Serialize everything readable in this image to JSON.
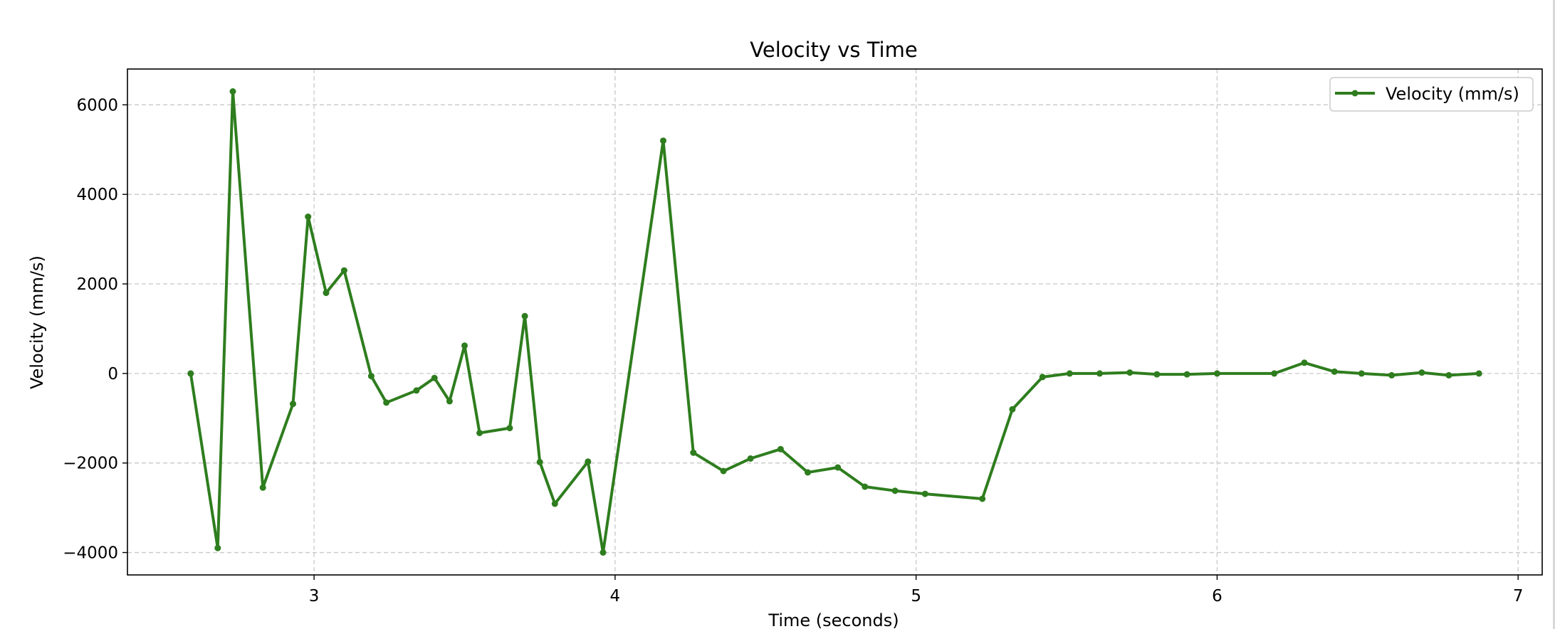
{
  "chart_data": {
    "type": "line",
    "title": "Velocity vs Time",
    "xlabel": "Time (seconds)",
    "ylabel": "Velocity (mm/s)",
    "xlim": [
      2.38,
      7.08
    ],
    "ylim": [
      -4500,
      6800
    ],
    "xticks": [
      3,
      4,
      5,
      6,
      7
    ],
    "xtick_labels": [
      "3",
      "4",
      "5",
      "6",
      "7"
    ],
    "yticks": [
      -4000,
      -2000,
      0,
      2000,
      4000,
      6000
    ],
    "ytick_labels": [
      "−4000",
      "−2000",
      "0",
      "2000",
      "4000",
      "6000"
    ],
    "grid": true,
    "grid_style": "dashed",
    "legend_position": "top-right",
    "colors": {
      "series": "#2e7d1e",
      "grid": "#c8c8c8",
      "axes": "#000000"
    },
    "series": [
      {
        "name": "Velocity (mm/s)",
        "marker": "circle",
        "x": [
          2.59,
          2.68,
          2.73,
          2.83,
          2.93,
          2.98,
          3.04,
          3.1,
          3.19,
          3.24,
          3.34,
          3.4,
          3.45,
          3.5,
          3.55,
          3.65,
          3.7,
          3.75,
          3.8,
          3.91,
          3.96,
          4.16,
          4.26,
          4.36,
          4.45,
          4.55,
          4.64,
          4.74,
          4.83,
          4.93,
          5.03,
          5.22,
          5.32,
          5.42,
          5.51,
          5.61,
          5.71,
          5.8,
          5.9,
          6.0,
          6.19,
          6.29,
          6.39,
          6.48,
          6.58,
          6.68,
          6.77,
          6.87
        ],
        "y": [
          0,
          -3900,
          6300,
          -2550,
          -680,
          3500,
          1800,
          2300,
          -60,
          -650,
          -380,
          -100,
          -620,
          620,
          -1330,
          -1220,
          1280,
          -1980,
          -2910,
          -1970,
          -4000,
          5200,
          -1770,
          -2180,
          -1900,
          -1690,
          -2210,
          -2100,
          -2530,
          -2620,
          -2690,
          -2800,
          -800,
          -80,
          0,
          0,
          20,
          -20,
          -20,
          0,
          0,
          240,
          40,
          0,
          -40,
          20,
          -40,
          0
        ]
      }
    ]
  }
}
